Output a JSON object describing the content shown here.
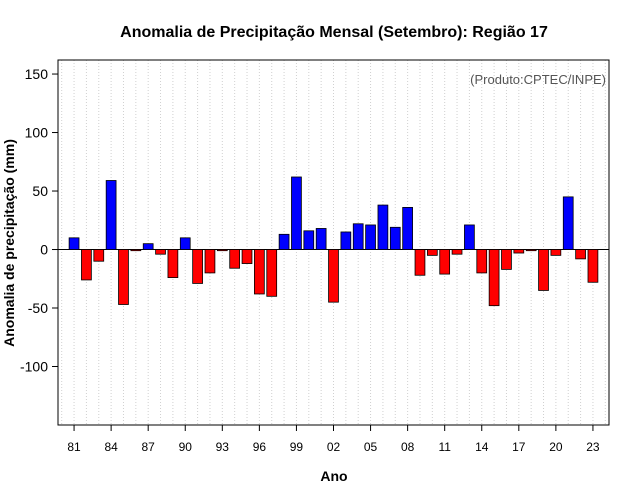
{
  "chart_data": {
    "type": "bar",
    "title": "Anomalia de Precipitação Mensal (Setembro): Região 17",
    "xlabel": "Ano",
    "ylabel": "Anomalia de precipitação (mm)",
    "annotation": "(Produto:CPTEC/INPE)",
    "ylim": [
      -150,
      162
    ],
    "yticks": [
      -100,
      -50,
      0,
      50,
      100,
      150
    ],
    "xlim": [
      1979.7,
      2024.3
    ],
    "xticks": [
      1981,
      1984,
      1987,
      1990,
      1993,
      1996,
      1999,
      2002,
      2005,
      2008,
      2011,
      2014,
      2017,
      2020,
      2023
    ],
    "xtick_labels": [
      "81",
      "84",
      "87",
      "90",
      "93",
      "96",
      "99",
      "02",
      "05",
      "08",
      "11",
      "14",
      "17",
      "20",
      "23"
    ],
    "grid": "vertical dotted",
    "positive_color": "#0000ff",
    "negative_color": "#ff0000",
    "years": [
      1981,
      1982,
      1983,
      1984,
      1985,
      1986,
      1987,
      1988,
      1989,
      1990,
      1991,
      1992,
      1993,
      1994,
      1995,
      1996,
      1997,
      1998,
      1999,
      2000,
      2001,
      2002,
      2003,
      2004,
      2005,
      2006,
      2007,
      2008,
      2009,
      2010,
      2011,
      2012,
      2013,
      2014,
      2015,
      2016,
      2017,
      2018,
      2019,
      2020,
      2021,
      2022,
      2023
    ],
    "values": [
      10,
      -26,
      -10,
      59,
      -47,
      -1,
      5,
      -4,
      -24,
      10,
      -29,
      -20,
      -1,
      -16,
      -12,
      -38,
      -40,
      13,
      62,
      16,
      18,
      -45,
      15,
      22,
      21,
      38,
      19,
      36,
      -22,
      -5,
      -21,
      -4,
      21,
      -20,
      -48,
      -17,
      -3,
      -1,
      -35,
      -5,
      45,
      -8,
      -28
    ]
  }
}
